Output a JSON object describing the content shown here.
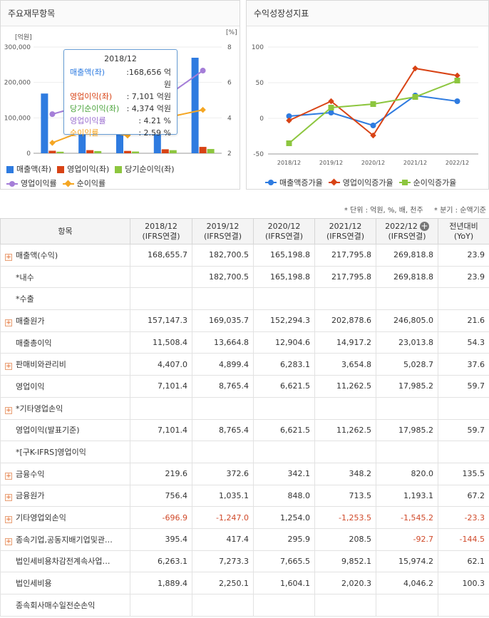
{
  "left_panel": {
    "title": "주요재무항목",
    "legend": [
      {
        "label": "매출액(좌)",
        "color": "#2e7be0",
        "kind": "square"
      },
      {
        "label": "영업이익(좌)",
        "color": "#d84315",
        "kind": "square"
      },
      {
        "label": "당기순이익(좌)",
        "color": "#8dc63f",
        "kind": "square"
      },
      {
        "label": "영업이익률",
        "color": "#a57ed8",
        "kind": "line-dot"
      },
      {
        "label": "순이익률",
        "color": "#f5a623",
        "kind": "line-diamond"
      }
    ],
    "tooltip": {
      "title": "2018/12",
      "rows": [
        {
          "label": "매출액(좌)",
          "value": ":168,656 억원",
          "color": "#2e7be0"
        },
        {
          "label": "영업이익(좌)",
          "value": ": 7,101 억원",
          "color": "#d84315"
        },
        {
          "label": "당기순이익(좌)",
          "value": ": 4,374 억원",
          "color": "#4aa33a"
        },
        {
          "label": "영업이익률",
          "value": ": 4.21 %",
          "color": "#9b6fd0"
        },
        {
          "label": "순이익률",
          "value": ": 2.59 %",
          "color": "#f5a623"
        }
      ]
    }
  },
  "right_panel": {
    "title": "수익성장성지표",
    "legend": [
      {
        "label": "매출액증가율",
        "color": "#2e7be0",
        "kind": "line-dot"
      },
      {
        "label": "영업이익증가율",
        "color": "#d84315",
        "kind": "line-diamond"
      },
      {
        "label": "순이익증가율",
        "color": "#8dc63f",
        "kind": "line-square"
      }
    ]
  },
  "chart_data": [
    {
      "type": "bar",
      "title": "주요재무항목",
      "categories": [
        "2018/12",
        "2019/12",
        "2020/12",
        "2021/12",
        "2022/12"
      ],
      "left_axis_unit": "[억원]",
      "right_axis_unit": "[%]",
      "ylim_left": [
        0,
        300000
      ],
      "ylim_right": [
        2,
        8
      ],
      "left_ticks": [
        "0",
        "100,000",
        "200,000",
        "300,000"
      ],
      "right_ticks": [
        "2",
        "4",
        "6",
        "8"
      ],
      "series": [
        {
          "name": "매출액(좌)",
          "axis": "left",
          "kind": "bar",
          "color": "#2e7be0",
          "values": [
            168656,
            182700,
            165199,
            217796,
            269819
          ]
        },
        {
          "name": "영업이익(좌)",
          "axis": "left",
          "kind": "bar",
          "color": "#d84315",
          "values": [
            7101,
            8765,
            6622,
            11263,
            17985
          ]
        },
        {
          "name": "당기순이익(좌)",
          "axis": "left",
          "kind": "bar",
          "color": "#8dc63f",
          "values": [
            4374,
            6200,
            4900,
            8700,
            12000
          ]
        },
        {
          "name": "영업이익률",
          "axis": "right",
          "kind": "line",
          "color": "#a57ed8",
          "values": [
            4.21,
            4.8,
            4.0,
            5.17,
            6.67
          ]
        },
        {
          "name": "순이익률",
          "axis": "right",
          "kind": "line",
          "color": "#f5a623",
          "values": [
            2.59,
            3.4,
            3.0,
            4.0,
            4.45
          ]
        }
      ]
    },
    {
      "type": "line",
      "title": "수익성장성지표",
      "categories": [
        "2018/12",
        "2019/12",
        "2020/12",
        "2021/12",
        "2022/12"
      ],
      "ylim": [
        -50,
        100
      ],
      "yticks": [
        "-50",
        "0",
        "50",
        "100"
      ],
      "series": [
        {
          "name": "매출액증가율",
          "color": "#2e7be0",
          "marker": "circle",
          "values": [
            3,
            8,
            -10,
            32,
            24
          ]
        },
        {
          "name": "영업이익증가율",
          "color": "#d84315",
          "marker": "diamond",
          "values": [
            -3,
            24,
            -24,
            70,
            60
          ]
        },
        {
          "name": "순이익증가율",
          "color": "#8dc63f",
          "marker": "square",
          "values": [
            -35,
            15,
            20,
            30,
            53
          ]
        }
      ]
    }
  ],
  "notes": [
    "* 단위 : 억원, %, 배, 천주",
    "* 분기 : 순액기준"
  ],
  "table": {
    "header_item": "항목",
    "columns": [
      {
        "period": "2018/12",
        "basis": "(IFRS연결)"
      },
      {
        "period": "2019/12",
        "basis": "(IFRS연결)"
      },
      {
        "period": "2020/12",
        "basis": "(IFRS연결)"
      },
      {
        "period": "2021/12",
        "basis": "(IFRS연결)"
      },
      {
        "period": "2022/12",
        "basis": "(IFRS연결)"
      }
    ],
    "yoy_header": "전년대비",
    "yoy_sub": "(YoY)",
    "rows": [
      {
        "label": "매출액(수익)",
        "expandable": true,
        "values": [
          "168,655.7",
          "182,700.5",
          "165,198.8",
          "217,795.8",
          "269,818.8",
          "23.9"
        ]
      },
      {
        "label": "*내수",
        "expandable": false,
        "indent": true,
        "values": [
          "",
          "182,700.5",
          "165,198.8",
          "217,795.8",
          "269,818.8",
          "23.9"
        ]
      },
      {
        "label": "*수출",
        "expandable": false,
        "indent": true,
        "values": [
          "",
          "",
          "",
          "",
          "",
          ""
        ]
      },
      {
        "label": "매출원가",
        "expandable": true,
        "values": [
          "157,147.3",
          "169,035.7",
          "152,294.3",
          "202,878.6",
          "246,805.0",
          "21.6"
        ]
      },
      {
        "label": "매출총이익",
        "expandable": false,
        "indent": true,
        "values": [
          "11,508.4",
          "13,664.8",
          "12,904.6",
          "14,917.2",
          "23,013.8",
          "54.3"
        ]
      },
      {
        "label": "판매비와관리비",
        "expandable": true,
        "values": [
          "4,407.0",
          "4,899.4",
          "6,283.1",
          "3,654.8",
          "5,028.7",
          "37.6"
        ]
      },
      {
        "label": "영업이익",
        "expandable": false,
        "indent": true,
        "values": [
          "7,101.4",
          "8,765.4",
          "6,621.5",
          "11,262.5",
          "17,985.2",
          "59.7"
        ]
      },
      {
        "label": "*기타영업손익",
        "expandable": true,
        "values": [
          "",
          "",
          "",
          "",
          "",
          ""
        ]
      },
      {
        "label": "영업이익(발표기준)",
        "expandable": false,
        "indent": true,
        "values": [
          "7,101.4",
          "8,765.4",
          "6,621.5",
          "11,262.5",
          "17,985.2",
          "59.7"
        ]
      },
      {
        "label": "*[구K-IFRS]영업이익",
        "expandable": false,
        "indent": true,
        "values": [
          "",
          "",
          "",
          "",
          "",
          ""
        ]
      },
      {
        "label": "금융수익",
        "expandable": true,
        "values": [
          "219.6",
          "372.6",
          "342.1",
          "348.2",
          "820.0",
          "135.5"
        ]
      },
      {
        "label": "금융원가",
        "expandable": true,
        "values": [
          "756.4",
          "1,035.1",
          "848.0",
          "713.5",
          "1,193.1",
          "67.2"
        ]
      },
      {
        "label": "기타영업외손익",
        "expandable": true,
        "values": [
          "-696.9",
          "-1,247.0",
          "1,254.0",
          "-1,253.5",
          "-1,545.2",
          "-23.3"
        ]
      },
      {
        "label": "종속기업,공동지배기업및관…",
        "expandable": true,
        "values": [
          "395.4",
          "417.4",
          "295.9",
          "208.5",
          "-92.7",
          "-144.5"
        ]
      },
      {
        "label": "법인세비용차감전계속사업…",
        "expandable": false,
        "indent": true,
        "values": [
          "6,263.1",
          "7,273.3",
          "7,665.5",
          "9,852.1",
          "15,974.2",
          "62.1"
        ]
      },
      {
        "label": "법인세비용",
        "expandable": false,
        "indent": true,
        "values": [
          "1,889.4",
          "2,250.1",
          "1,604.1",
          "2,020.3",
          "4,046.2",
          "100.3"
        ]
      },
      {
        "label": "종속회사매수일전순손익",
        "expandable": false,
        "indent": true,
        "values": [
          "",
          "",
          "",
          "",
          "",
          ""
        ]
      }
    ]
  }
}
